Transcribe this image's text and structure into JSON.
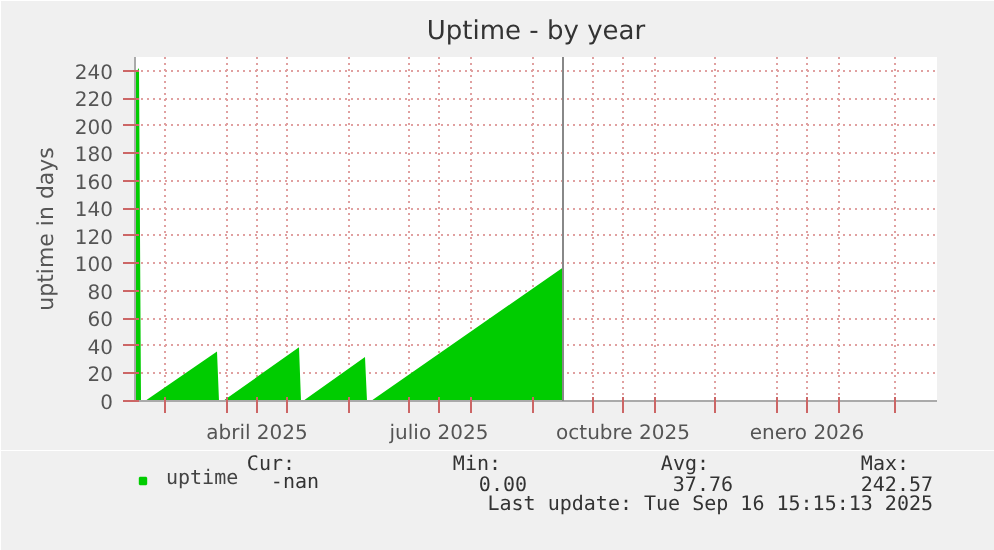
{
  "chart_data": {
    "type": "area",
    "title": "Uptime - by year",
    "ylabel": "uptime in days",
    "x": [
      "2025-02-14",
      "2025-02-16",
      "2025-02-17",
      "2025-02-19",
      "2025-03-27",
      "2025-03-28",
      "2025-03-30",
      "2025-05-07",
      "2025-05-08",
      "2025-05-09",
      "2025-06-09",
      "2025-06-10",
      "2025-06-12",
      "2025-09-16"
    ],
    "series": [
      {
        "name": "uptime",
        "color": "#00cc00",
        "values": [
          238,
          242,
          0,
          0,
          36,
          0,
          0,
          39,
          0,
          0,
          32,
          0,
          0,
          97
        ]
      }
    ],
    "xlim": [
      "2025-02-14",
      "2026-03-22"
    ],
    "xticks": [
      {
        "value": "2025-03-01",
        "label": null
      },
      {
        "value": "2025-04-01",
        "label": null
      },
      {
        "value": "2025-04-16",
        "label": "abril 2025"
      },
      {
        "value": "2025-05-01",
        "label": null
      },
      {
        "value": "2025-06-01",
        "label": null
      },
      {
        "value": "2025-07-01",
        "label": null
      },
      {
        "value": "2025-07-16",
        "label": "julio 2025"
      },
      {
        "value": "2025-08-01",
        "label": null
      },
      {
        "value": "2025-09-01",
        "label": null
      },
      {
        "value": "2025-10-01",
        "label": null
      },
      {
        "value": "2025-10-16",
        "label": "octubre 2025"
      },
      {
        "value": "2025-11-01",
        "label": null
      },
      {
        "value": "2025-12-01",
        "label": null
      },
      {
        "value": "2026-01-01",
        "label": null
      },
      {
        "value": "2026-01-16",
        "label": "enero 2026"
      },
      {
        "value": "2026-02-01",
        "label": null
      },
      {
        "value": "2026-03-01",
        "label": null
      }
    ],
    "ylim": [
      0,
      250
    ],
    "yticks": [
      0,
      20,
      40,
      60,
      80,
      100,
      120,
      140,
      160,
      180,
      200,
      220,
      240
    ],
    "grid": true,
    "legend": "bottom",
    "ref_lines": [
      {
        "axis": "x",
        "value": "2025-09-16",
        "color": "#888888"
      }
    ],
    "annotations": [
      "Cur:",
      "Min:",
      "Avg:",
      "Max:",
      "-nan",
      "0.00",
      "37.76",
      "242.57",
      "Last update: Tue Sep 16 15:15:13 2025"
    ]
  }
}
